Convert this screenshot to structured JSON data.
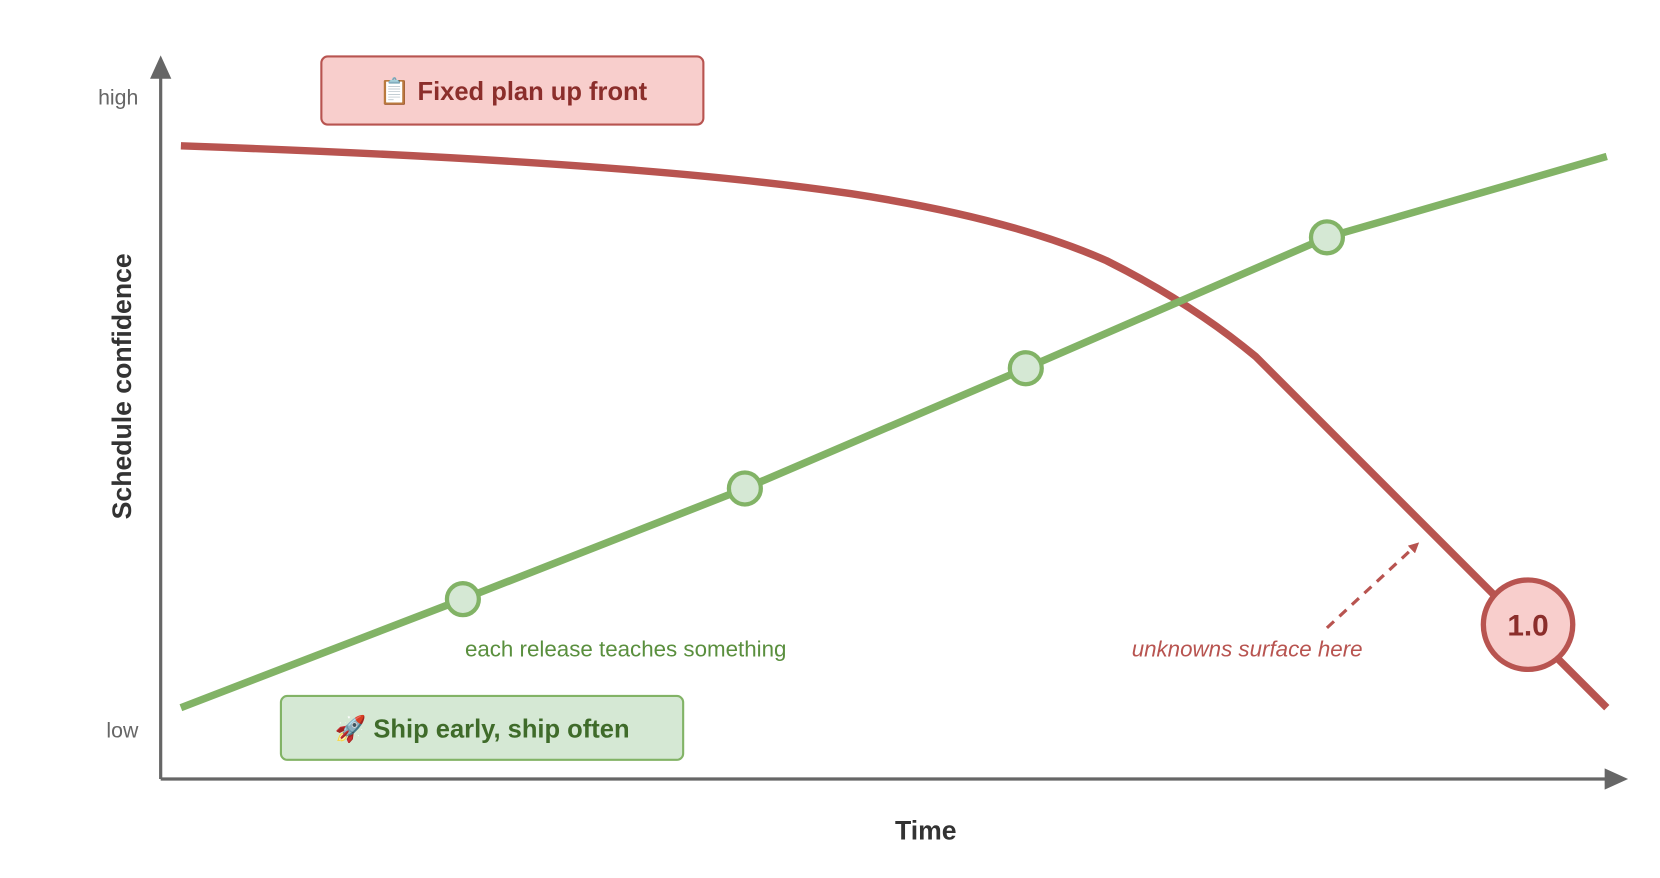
{
  "axes": {
    "y_label": "Schedule confidence",
    "x_label": "Time",
    "y_high": "high",
    "y_low": "low"
  },
  "boxes": [
    {
      "label": "📋 Fixed plan up front"
    },
    {
      "label": "🚀 Ship early, ship often"
    }
  ],
  "annotations": [
    {
      "text": "each release teaches something"
    },
    {
      "text": "unknowns surface here"
    }
  ],
  "milestone": {
    "label": "1.0"
  }
}
